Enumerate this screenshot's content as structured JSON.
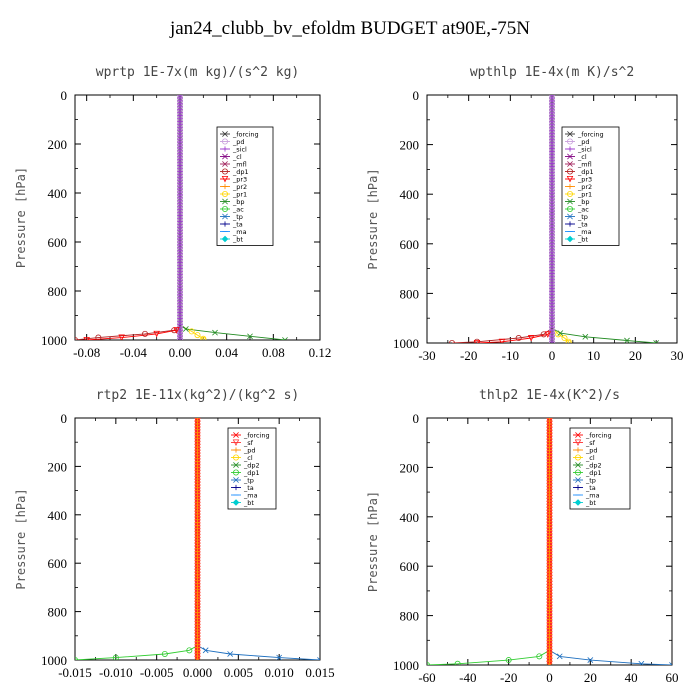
{
  "title": "jan24_clubb_bv_efoldm  BUDGET at90E,-75N",
  "chart_data": [
    {
      "type": "line",
      "title": "wprtp  1E-7x(m kg)/(s^2 kg)",
      "ylabel": "Pressure [hPa]",
      "xlim": [
        -0.09,
        0.12
      ],
      "ylim": [
        1000,
        0
      ],
      "xticks": [
        "-0.08",
        "-0.04",
        "0.00",
        "0.04",
        "0.08",
        "0.12"
      ],
      "xtick_values": [
        -0.08,
        -0.04,
        0.0,
        0.04,
        0.08,
        0.12
      ],
      "yticks": [
        "0",
        "200",
        "400",
        "600",
        "800",
        "1000"
      ],
      "ytick_values": [
        0,
        200,
        400,
        600,
        800,
        1000
      ],
      "legend_placement": "top-right",
      "series": [
        {
          "name": "_forcing",
          "color": "#333333",
          "marker": "x",
          "p": [
            0,
            940,
            970,
            985,
            995,
            1000
          ],
          "x": [
            0,
            0,
            0,
            0,
            0,
            0
          ]
        },
        {
          "name": "_pd",
          "color": "#c9a0dc",
          "marker": "o",
          "p": [
            0,
            940,
            1000
          ],
          "x": [
            0,
            0,
            0
          ]
        },
        {
          "name": "_sicl",
          "color": "#9932cc",
          "marker": "+",
          "p": [
            0,
            940,
            1000
          ],
          "x": [
            0,
            0,
            0
          ]
        },
        {
          "name": "_cl",
          "color": "#800080",
          "marker": "x",
          "p": [
            0,
            940,
            1000
          ],
          "x": [
            0,
            0,
            0
          ]
        },
        {
          "name": "_mfl",
          "color": "#a0205a",
          "marker": "x",
          "p": [
            0,
            940,
            1000
          ],
          "x": [
            0,
            0,
            0
          ]
        },
        {
          "name": "_dp1",
          "color": "#b22222",
          "marker": "o",
          "p": [
            0,
            940,
            960,
            975,
            990,
            1000
          ],
          "x": [
            0,
            0,
            -0.005,
            -0.03,
            -0.07,
            -0.09
          ]
        },
        {
          "name": "_pr3",
          "color": "#ff0000",
          "marker": "v",
          "p": [
            0,
            940,
            960,
            975,
            990,
            1000
          ],
          "x": [
            0,
            0,
            -0.003,
            -0.02,
            -0.05,
            -0.08
          ]
        },
        {
          "name": "_pr2",
          "color": "#ff8c00",
          "marker": "+",
          "p": [
            0,
            940,
            1000
          ],
          "x": [
            0,
            0,
            0
          ]
        },
        {
          "name": "_pr1",
          "color": "#ffd700",
          "marker": "o",
          "p": [
            0,
            940,
            965,
            980,
            995,
            1000
          ],
          "x": [
            0,
            0,
            0.01,
            0.015,
            0.02,
            0.02
          ]
        },
        {
          "name": "_bp",
          "color": "#228b22",
          "marker": "x",
          "p": [
            0,
            940,
            955,
            970,
            985,
            1000
          ],
          "x": [
            0,
            0,
            0.005,
            0.03,
            0.06,
            0.09
          ]
        },
        {
          "name": "_ac",
          "color": "#32cd32",
          "marker": "o",
          "p": [
            0,
            940,
            1000
          ],
          "x": [
            0,
            0,
            0
          ]
        },
        {
          "name": "_tp",
          "color": "#1e6fbf",
          "marker": "x",
          "p": [
            0,
            940,
            1000
          ],
          "x": [
            0,
            0,
            0
          ]
        },
        {
          "name": "_ta",
          "color": "#00008b",
          "marker": "+",
          "p": [
            0,
            940,
            1000
          ],
          "x": [
            0,
            0,
            0
          ]
        },
        {
          "name": "_ma",
          "color": "#1e90ff",
          "marker": "-",
          "p": [
            0,
            940,
            1000
          ],
          "x": [
            0,
            0,
            0
          ]
        },
        {
          "name": "_bt",
          "color": "#00ced1",
          "marker": "d",
          "p": [
            0,
            940,
            1000
          ],
          "x": [
            0,
            0,
            0
          ]
        }
      ]
    },
    {
      "type": "line",
      "title": "wpthlp  1E-4x(m K)/s^2",
      "ylabel": "Pressure [hPa]",
      "xlim": [
        -30,
        30
      ],
      "ylim": [
        1000,
        0
      ],
      "xticks": [
        "-30",
        "-20",
        "-10",
        "0",
        "10",
        "20",
        "30"
      ],
      "xtick_values": [
        -30,
        -20,
        -10,
        0,
        10,
        20,
        30
      ],
      "yticks": [
        "0",
        "200",
        "400",
        "600",
        "800",
        "1000"
      ],
      "ytick_values": [
        0,
        200,
        400,
        600,
        800,
        1000
      ],
      "legend_placement": "top-right",
      "series": [
        {
          "name": "_forcing",
          "color": "#333333",
          "marker": "x",
          "p": [
            0,
            940,
            1000
          ],
          "x": [
            0,
            0,
            0
          ]
        },
        {
          "name": "_pd",
          "color": "#c9a0dc",
          "marker": "o",
          "p": [
            0,
            940,
            1000
          ],
          "x": [
            0,
            0,
            0
          ]
        },
        {
          "name": "_sicl",
          "color": "#9932cc",
          "marker": "+",
          "p": [
            0,
            940,
            1000
          ],
          "x": [
            0,
            0,
            0
          ]
        },
        {
          "name": "_cl",
          "color": "#800080",
          "marker": "x",
          "p": [
            0,
            940,
            1000
          ],
          "x": [
            0,
            0,
            0
          ]
        },
        {
          "name": "_mfl",
          "color": "#a0205a",
          "marker": "x",
          "p": [
            0,
            940,
            1000
          ],
          "x": [
            0,
            0,
            0
          ]
        },
        {
          "name": "_dp1",
          "color": "#b22222",
          "marker": "o",
          "p": [
            0,
            940,
            965,
            980,
            995,
            1000
          ],
          "x": [
            0,
            0,
            -2,
            -8,
            -18,
            -24
          ]
        },
        {
          "name": "_pr3",
          "color": "#ff0000",
          "marker": "v",
          "p": [
            0,
            940,
            965,
            980,
            995,
            1000
          ],
          "x": [
            0,
            0,
            -1,
            -5,
            -12,
            -18
          ]
        },
        {
          "name": "_pr2",
          "color": "#ff8c00",
          "marker": "+",
          "p": [
            0,
            940,
            1000
          ],
          "x": [
            0,
            0,
            0
          ]
        },
        {
          "name": "_pr1",
          "color": "#ffd700",
          "marker": "o",
          "p": [
            0,
            940,
            965,
            980,
            995,
            1000
          ],
          "x": [
            0,
            0,
            1.5,
            3,
            4,
            4
          ]
        },
        {
          "name": "_bp",
          "color": "#228b22",
          "marker": "x",
          "p": [
            0,
            940,
            960,
            975,
            990,
            1000
          ],
          "x": [
            0,
            0,
            2,
            8,
            18,
            25
          ]
        },
        {
          "name": "_ac",
          "color": "#32cd32",
          "marker": "o",
          "p": [
            0,
            940,
            1000
          ],
          "x": [
            0,
            0,
            0
          ]
        },
        {
          "name": "_tp",
          "color": "#1e6fbf",
          "marker": "x",
          "p": [
            0,
            940,
            1000
          ],
          "x": [
            0,
            0,
            0
          ]
        },
        {
          "name": "_ta",
          "color": "#00008b",
          "marker": "+",
          "p": [
            0,
            940,
            1000
          ],
          "x": [
            0,
            0,
            0
          ]
        },
        {
          "name": "_ma",
          "color": "#1e90ff",
          "marker": "-",
          "p": [
            0,
            940,
            1000
          ],
          "x": [
            0,
            0,
            0
          ]
        },
        {
          "name": "_bt",
          "color": "#00ced1",
          "marker": "d",
          "p": [
            0,
            940,
            1000
          ],
          "x": [
            0,
            0,
            0
          ]
        }
      ]
    },
    {
      "type": "line",
      "title": "rtp2  1E-11x(kg^2)/(kg^2 s)",
      "ylabel": "Pressure [hPa]",
      "xlim": [
        -0.015,
        0.015
      ],
      "ylim": [
        1000,
        0
      ],
      "xticks": [
        "-0.015",
        "-0.010",
        "-0.005",
        "0.000",
        "0.005",
        "0.010",
        "0.015"
      ],
      "xtick_values": [
        -0.015,
        -0.01,
        -0.005,
        0.0,
        0.005,
        0.01,
        0.015
      ],
      "yticks": [
        "0",
        "200",
        "400",
        "600",
        "800",
        "1000"
      ],
      "ytick_values": [
        0,
        200,
        400,
        600,
        800,
        1000
      ],
      "legend_placement": "top-right",
      "series": [
        {
          "name": "_forcing",
          "color": "#ff0000",
          "marker": "x",
          "p": [
            0,
            940,
            1000
          ],
          "x": [
            0,
            0,
            0
          ]
        },
        {
          "name": "_sf",
          "color": "#ff3030",
          "marker": "v",
          "p": [
            0,
            940,
            1000
          ],
          "x": [
            0,
            0,
            0
          ]
        },
        {
          "name": "_pd",
          "color": "#ff8c00",
          "marker": "+",
          "p": [
            0,
            940,
            1000
          ],
          "x": [
            0,
            0,
            0
          ]
        },
        {
          "name": "_cl",
          "color": "#ffd700",
          "marker": "o",
          "p": [
            0,
            940,
            1000
          ],
          "x": [
            0,
            0,
            0
          ]
        },
        {
          "name": "_dp2",
          "color": "#228b22",
          "marker": "x",
          "p": [
            0,
            940,
            1000
          ],
          "x": [
            0,
            0,
            0
          ]
        },
        {
          "name": "_dp1",
          "color": "#32cd32",
          "marker": "o",
          "p": [
            0,
            940,
            960,
            975,
            990,
            1000
          ],
          "x": [
            0,
            0,
            -0.001,
            -0.004,
            -0.01,
            -0.015
          ]
        },
        {
          "name": "_tp",
          "color": "#1e6fbf",
          "marker": "x",
          "p": [
            0,
            940,
            960,
            975,
            990,
            1000
          ],
          "x": [
            0,
            0,
            0.001,
            0.004,
            0.01,
            0.015
          ]
        },
        {
          "name": "_ta",
          "color": "#00008b",
          "marker": "+",
          "p": [
            0,
            940,
            1000
          ],
          "x": [
            0,
            0,
            0
          ]
        },
        {
          "name": "_ma",
          "color": "#1e90ff",
          "marker": "-",
          "p": [
            0,
            940,
            1000
          ],
          "x": [
            0,
            0,
            0
          ]
        },
        {
          "name": "_bt",
          "color": "#00ced1",
          "marker": "d",
          "p": [
            0,
            940,
            1000
          ],
          "x": [
            0,
            0,
            0
          ]
        }
      ]
    },
    {
      "type": "line",
      "title": "thlp2  1E-4x(K^2)/s",
      "ylabel": "Pressure [hPa]",
      "xlim": [
        -60,
        60
      ],
      "ylim": [
        1000,
        0
      ],
      "xticks": [
        "-60",
        "-40",
        "-20",
        "0",
        "20",
        "40",
        "60"
      ],
      "xtick_values": [
        -60,
        -40,
        -20,
        0,
        20,
        40,
        60
      ],
      "yticks": [
        "0",
        "200",
        "400",
        "600",
        "800",
        "1000"
      ],
      "ytick_values": [
        0,
        200,
        400,
        600,
        800,
        1000
      ],
      "legend_placement": "top-right",
      "series": [
        {
          "name": "_forcing",
          "color": "#ff0000",
          "marker": "x",
          "p": [
            0,
            940,
            1000
          ],
          "x": [
            0,
            0,
            0
          ]
        },
        {
          "name": "_sf",
          "color": "#ff3030",
          "marker": "v",
          "p": [
            0,
            940,
            1000
          ],
          "x": [
            0,
            0,
            0
          ]
        },
        {
          "name": "_pd",
          "color": "#ff8c00",
          "marker": "+",
          "p": [
            0,
            940,
            1000
          ],
          "x": [
            0,
            0,
            0
          ]
        },
        {
          "name": "_cl",
          "color": "#ffd700",
          "marker": "o",
          "p": [
            0,
            940,
            1000
          ],
          "x": [
            0,
            0,
            0
          ]
        },
        {
          "name": "_dp2",
          "color": "#228b22",
          "marker": "x",
          "p": [
            0,
            940,
            1000
          ],
          "x": [
            0,
            0,
            0
          ]
        },
        {
          "name": "_dp1",
          "color": "#32cd32",
          "marker": "o",
          "p": [
            0,
            940,
            965,
            980,
            995,
            1000
          ],
          "x": [
            0,
            0,
            -5,
            -20,
            -45,
            -60
          ]
        },
        {
          "name": "_tp",
          "color": "#1e6fbf",
          "marker": "x",
          "p": [
            0,
            940,
            965,
            980,
            995,
            1000
          ],
          "x": [
            0,
            0,
            5,
            20,
            45,
            60
          ]
        },
        {
          "name": "_ta",
          "color": "#00008b",
          "marker": "+",
          "p": [
            0,
            940,
            1000
          ],
          "x": [
            0,
            0,
            0
          ]
        },
        {
          "name": "_ma",
          "color": "#1e90ff",
          "marker": "-",
          "p": [
            0,
            940,
            1000
          ],
          "x": [
            0,
            0,
            0
          ]
        },
        {
          "name": "_bt",
          "color": "#00ced1",
          "marker": "d",
          "p": [
            0,
            940,
            1000
          ],
          "x": [
            0,
            0,
            0
          ]
        }
      ]
    }
  ]
}
